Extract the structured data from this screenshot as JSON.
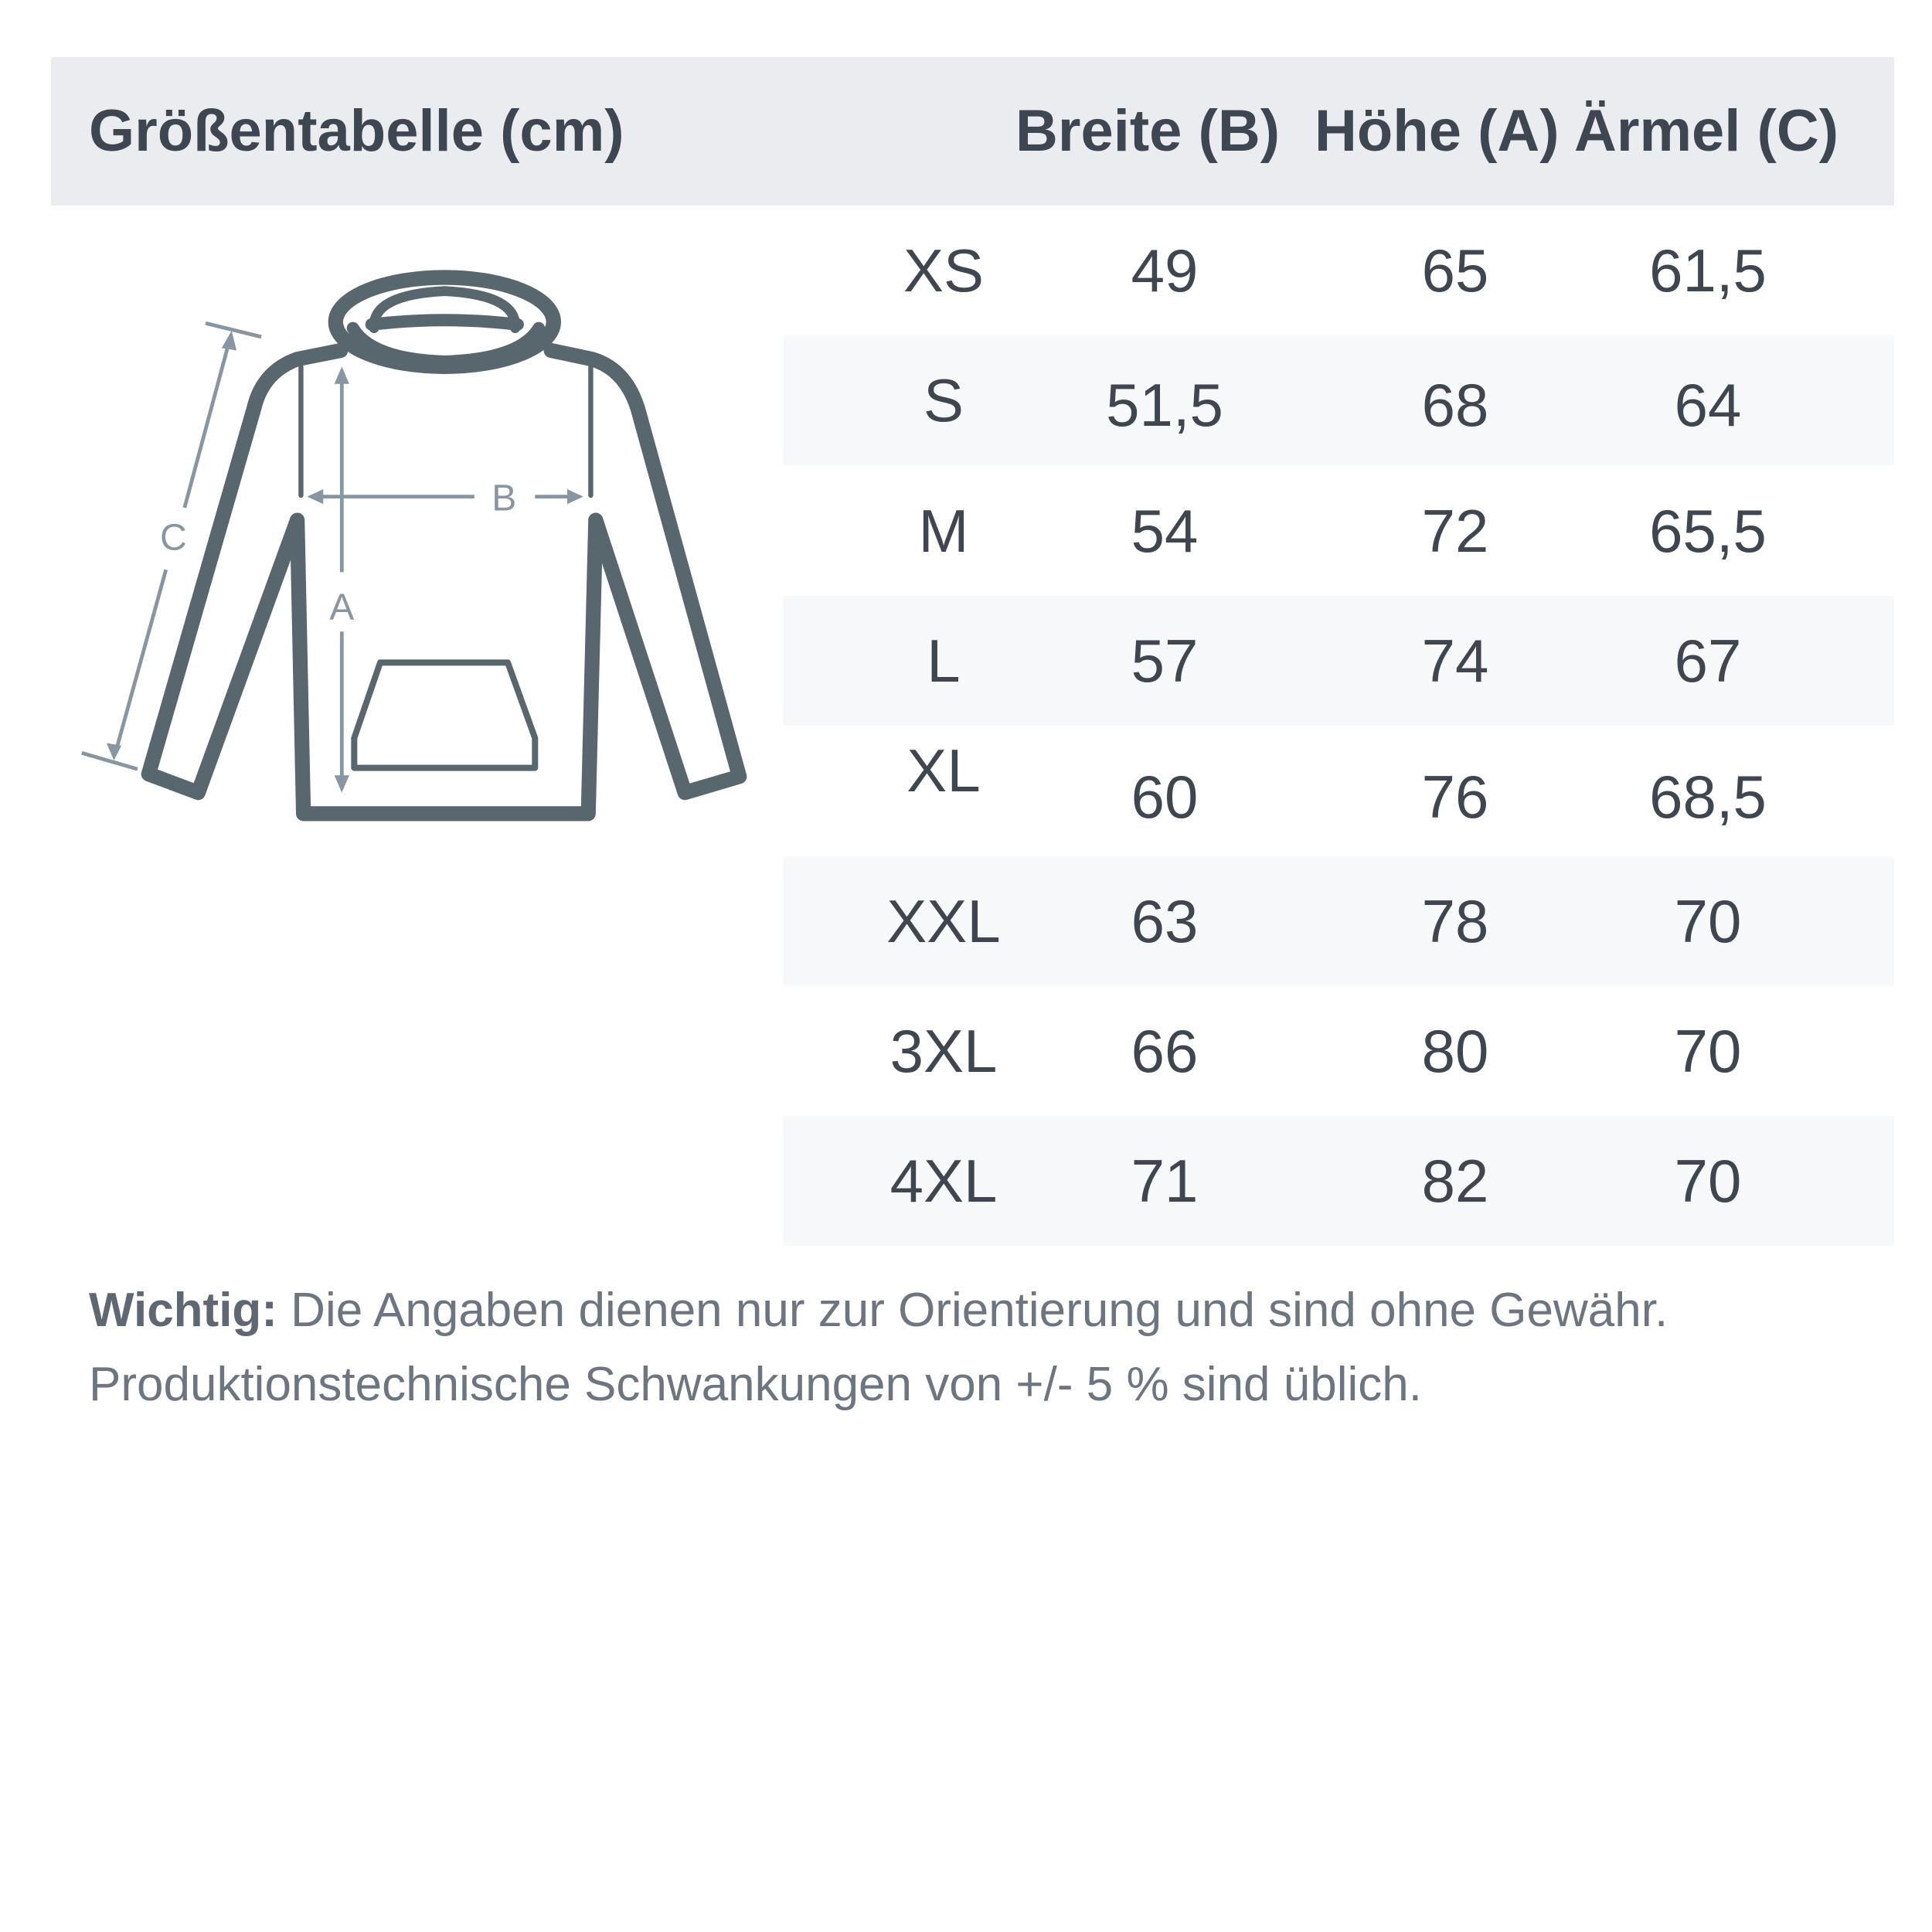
{
  "header": {
    "title": "Größentabelle (cm)",
    "columns": [
      "Breite (B)",
      "Höhe (A)",
      "Ärmel (C)"
    ]
  },
  "diagram": {
    "labels": {
      "a": "A",
      "b": "B",
      "c": "C"
    },
    "colors": {
      "outline": "#58666e",
      "arrows": "#8796a0"
    }
  },
  "rows": [
    {
      "size": "XS",
      "breite": "49",
      "hoehe": "65",
      "aermel": "61,5"
    },
    {
      "size": "S",
      "breite": "51,5",
      "hoehe": "68",
      "aermel": "64"
    },
    {
      "size": "M",
      "breite": "54",
      "hoehe": "72",
      "aermel": "65,5"
    },
    {
      "size": "L",
      "breite": "57",
      "hoehe": "74",
      "aermel": "67"
    },
    {
      "size": "XL",
      "breite": "60",
      "hoehe": "76",
      "aermel": "68,5"
    },
    {
      "size": "XXL",
      "breite": "63",
      "hoehe": "78",
      "aermel": "70"
    },
    {
      "size": "3XL",
      "breite": "66",
      "hoehe": "80",
      "aermel": "70"
    },
    {
      "size": "4XL",
      "breite": "71",
      "hoehe": "82",
      "aermel": "70"
    }
  ],
  "note": {
    "label": "Wichtig:",
    "line1": " Die Angaben dienen nur zur Orientierung und sind ohne Gewähr.",
    "line2": "Produktionstechnische Schwankungen von +/- 5 % sind üblich."
  }
}
